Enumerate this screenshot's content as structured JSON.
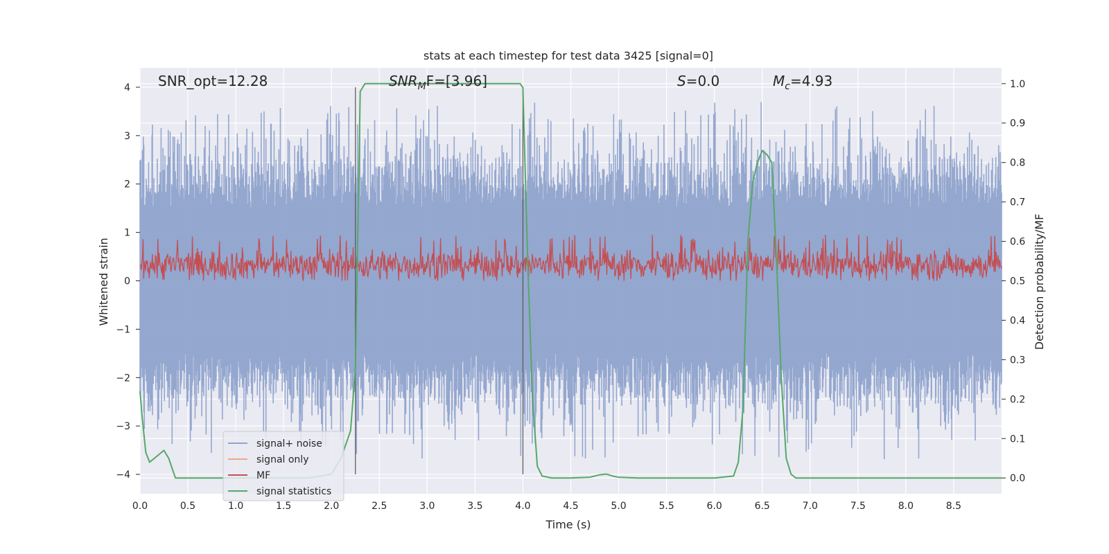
{
  "chart_data": {
    "type": "line",
    "title": "stats at each timestep for test data 3425 [signal=0]",
    "xlabel": "Time (s)",
    "ylabel_left": "Whitened strain",
    "ylabel_right": "Detection probability/MF",
    "xlim": [
      0.0,
      9.0
    ],
    "ylim_left": [
      -4.4,
      4.4
    ],
    "ylim_right": [
      -0.04,
      1.04
    ],
    "x_ticks": [
      "0.0",
      "0.5",
      "1.0",
      "1.5",
      "2.0",
      "2.5",
      "3.0",
      "3.5",
      "4.0",
      "4.5",
      "5.0",
      "5.5",
      "6.0",
      "6.5",
      "7.0",
      "7.5",
      "8.0",
      "8.5"
    ],
    "y_ticks_left": [
      "4",
      "3",
      "2",
      "1",
      "0",
      "−1",
      "−2",
      "−3",
      "−4"
    ],
    "y_ticks_right": [
      "1.0",
      "0.9",
      "0.8",
      "0.7",
      "0.6",
      "0.5",
      "0.4",
      "0.3",
      "0.2",
      "0.1",
      "0.0"
    ],
    "grid": true,
    "legend_position": "lower-left",
    "annotations": {
      "snr_opt": "SNR_opt=12.28",
      "snr_mf_name": "SNR",
      "snr_mf_sub": "M",
      "snr_mf_rest": "F=[3.96]",
      "s_name": "S",
      "s_rest": "=0.0",
      "mc_name": "M",
      "mc_sub": "c",
      "mc_rest": "=4.93"
    },
    "vertical_markers_x": [
      2.25,
      4.0
    ],
    "series": [
      {
        "name": "signal+ noise",
        "color": "#8fa3cc",
        "style": "dense noise, roughly within ±3.5 whitened strain"
      },
      {
        "name": "signal only",
        "color": "#e8a98a",
        "style": "not visible (no signal)"
      },
      {
        "name": "MF",
        "color": "#c44e52",
        "style": "dense noise around 0.35 on left axis"
      },
      {
        "name": "signal statistics",
        "color": "#55a868",
        "axis": "right",
        "x": [
          0.0,
          0.02,
          0.06,
          0.1,
          0.15,
          0.2,
          0.25,
          0.3,
          0.37,
          0.5,
          0.75,
          1.0,
          1.25,
          1.5,
          1.75,
          1.9,
          2.0,
          2.1,
          2.2,
          2.25,
          2.3,
          2.35,
          2.4,
          2.5,
          3.0,
          3.5,
          3.9,
          3.97,
          4.0,
          4.05,
          4.1,
          4.15,
          4.2,
          4.3,
          4.5,
          4.7,
          4.8,
          4.87,
          4.95,
          5.0,
          5.2,
          5.5,
          6.0,
          6.2,
          6.25,
          6.3,
          6.35,
          6.4,
          6.45,
          6.5,
          6.55,
          6.6,
          6.65,
          6.7,
          6.75,
          6.8,
          6.85,
          6.9,
          7.0,
          7.5,
          8.0,
          8.5,
          9.0
        ],
        "y": [
          0.22,
          0.16,
          0.065,
          0.04,
          0.05,
          0.06,
          0.07,
          0.05,
          0.0,
          0.0,
          0.0,
          0.0,
          0.0,
          0.0,
          0.0,
          0.005,
          0.01,
          0.05,
          0.12,
          0.28,
          0.98,
          1.0,
          1.0,
          1.0,
          1.0,
          1.0,
          1.0,
          1.0,
          0.99,
          0.55,
          0.2,
          0.03,
          0.005,
          0.0,
          0.0,
          0.002,
          0.008,
          0.01,
          0.004,
          0.002,
          0.0,
          0.0,
          0.0,
          0.005,
          0.04,
          0.18,
          0.6,
          0.75,
          0.8,
          0.83,
          0.82,
          0.8,
          0.55,
          0.25,
          0.05,
          0.01,
          0.0,
          0.0,
          0.0,
          0.0,
          0.0,
          0.0,
          0.0
        ]
      }
    ]
  }
}
